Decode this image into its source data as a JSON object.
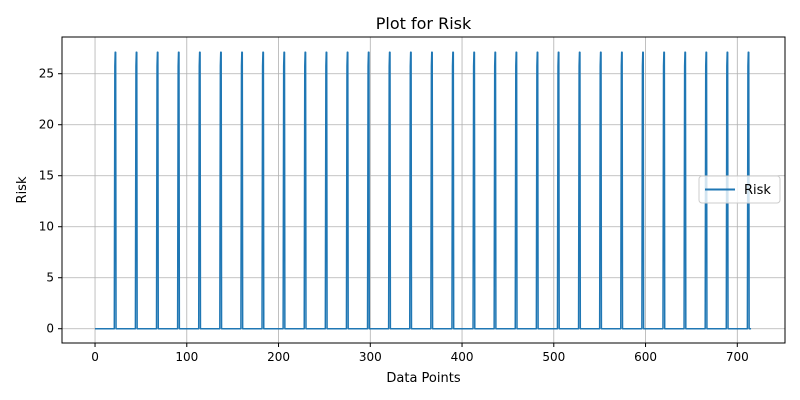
{
  "chart_data": {
    "type": "line",
    "title": "Plot for Risk",
    "xlabel": "Data Points",
    "ylabel": "Risk",
    "xlim": [
      -36,
      752
    ],
    "ylim": [
      -1.4,
      28.6
    ],
    "xticks": [
      0,
      100,
      200,
      300,
      400,
      500,
      600,
      700
    ],
    "yticks": [
      0,
      5,
      10,
      15,
      20,
      25
    ],
    "grid": true,
    "legend_position": "center-right",
    "series": [
      {
        "name": "Risk",
        "color": "#1f77b4",
        "x_count": 716,
        "baseline": 0,
        "peak": 27.1,
        "spike_positions": [
          22,
          45,
          68,
          91,
          114,
          137,
          160,
          183,
          206,
          229,
          252,
          275,
          298,
          321,
          344,
          367,
          390,
          413,
          436,
          459,
          482,
          505,
          528,
          551,
          574,
          597,
          620,
          643,
          666,
          689,
          712
        ]
      }
    ]
  }
}
